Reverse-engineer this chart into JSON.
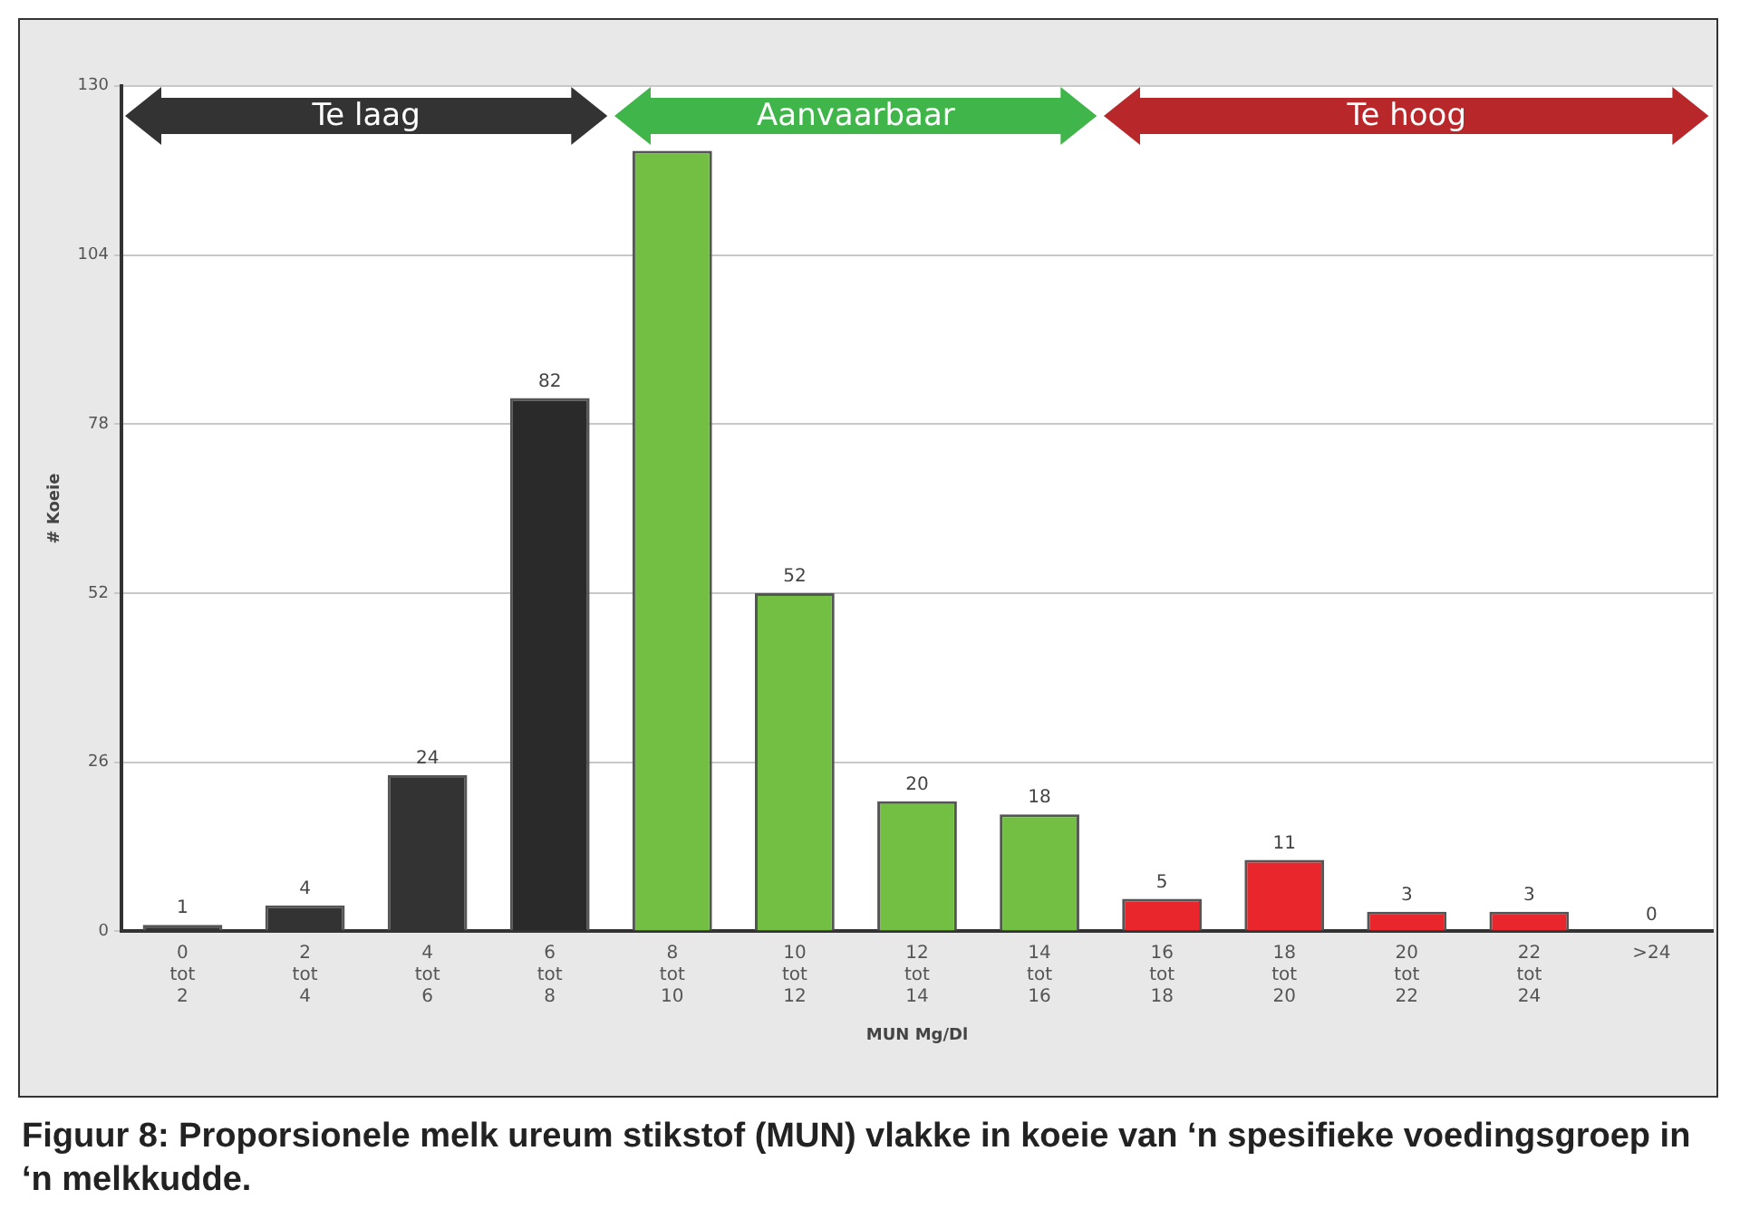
{
  "chart_data": {
    "type": "bar",
    "xlabel": "MUN Mg/Dl",
    "ylabel": "# Koeie",
    "categories": [
      "0 tot 2",
      "2 tot 4",
      "4 tot 6",
      "6 tot 8",
      "8 tot 10",
      "10 tot 12",
      "12 tot 14",
      "14 tot 16",
      "16 tot 18",
      "18 tot 20",
      "20 tot 22",
      "22 tot 24",
      ">24"
    ],
    "values": [
      1,
      4,
      24,
      82,
      120,
      52,
      20,
      18,
      5,
      11,
      3,
      3,
      0
    ],
    "value_labels": [
      "1",
      "4",
      "24",
      "82",
      null,
      "52",
      "20",
      "18",
      "5",
      "11",
      "3",
      "3",
      "0"
    ],
    "colors": [
      "#333333",
      "#333333",
      "#333333",
      "#2a2a2a",
      "#72bf44",
      "#72bf44",
      "#72bf44",
      "#72bf44",
      "#e8262b",
      "#e8262b",
      "#e8262b",
      "#e8262b",
      "#e8262b"
    ],
    "ylim": [
      0,
      130
    ],
    "yticks": [
      0,
      26,
      52,
      78,
      104,
      130
    ],
    "grid": "y",
    "legend": false,
    "annotations": [
      "Te laag",
      "Aanvaarbaar",
      "Te hoog",
      "Figuur 8: Proporsionele melk ureum stikstof (MUN) vlakke in koeie van ‘n spesifieke voedingsgroep in ‘n melkkudde."
    ]
  }
}
